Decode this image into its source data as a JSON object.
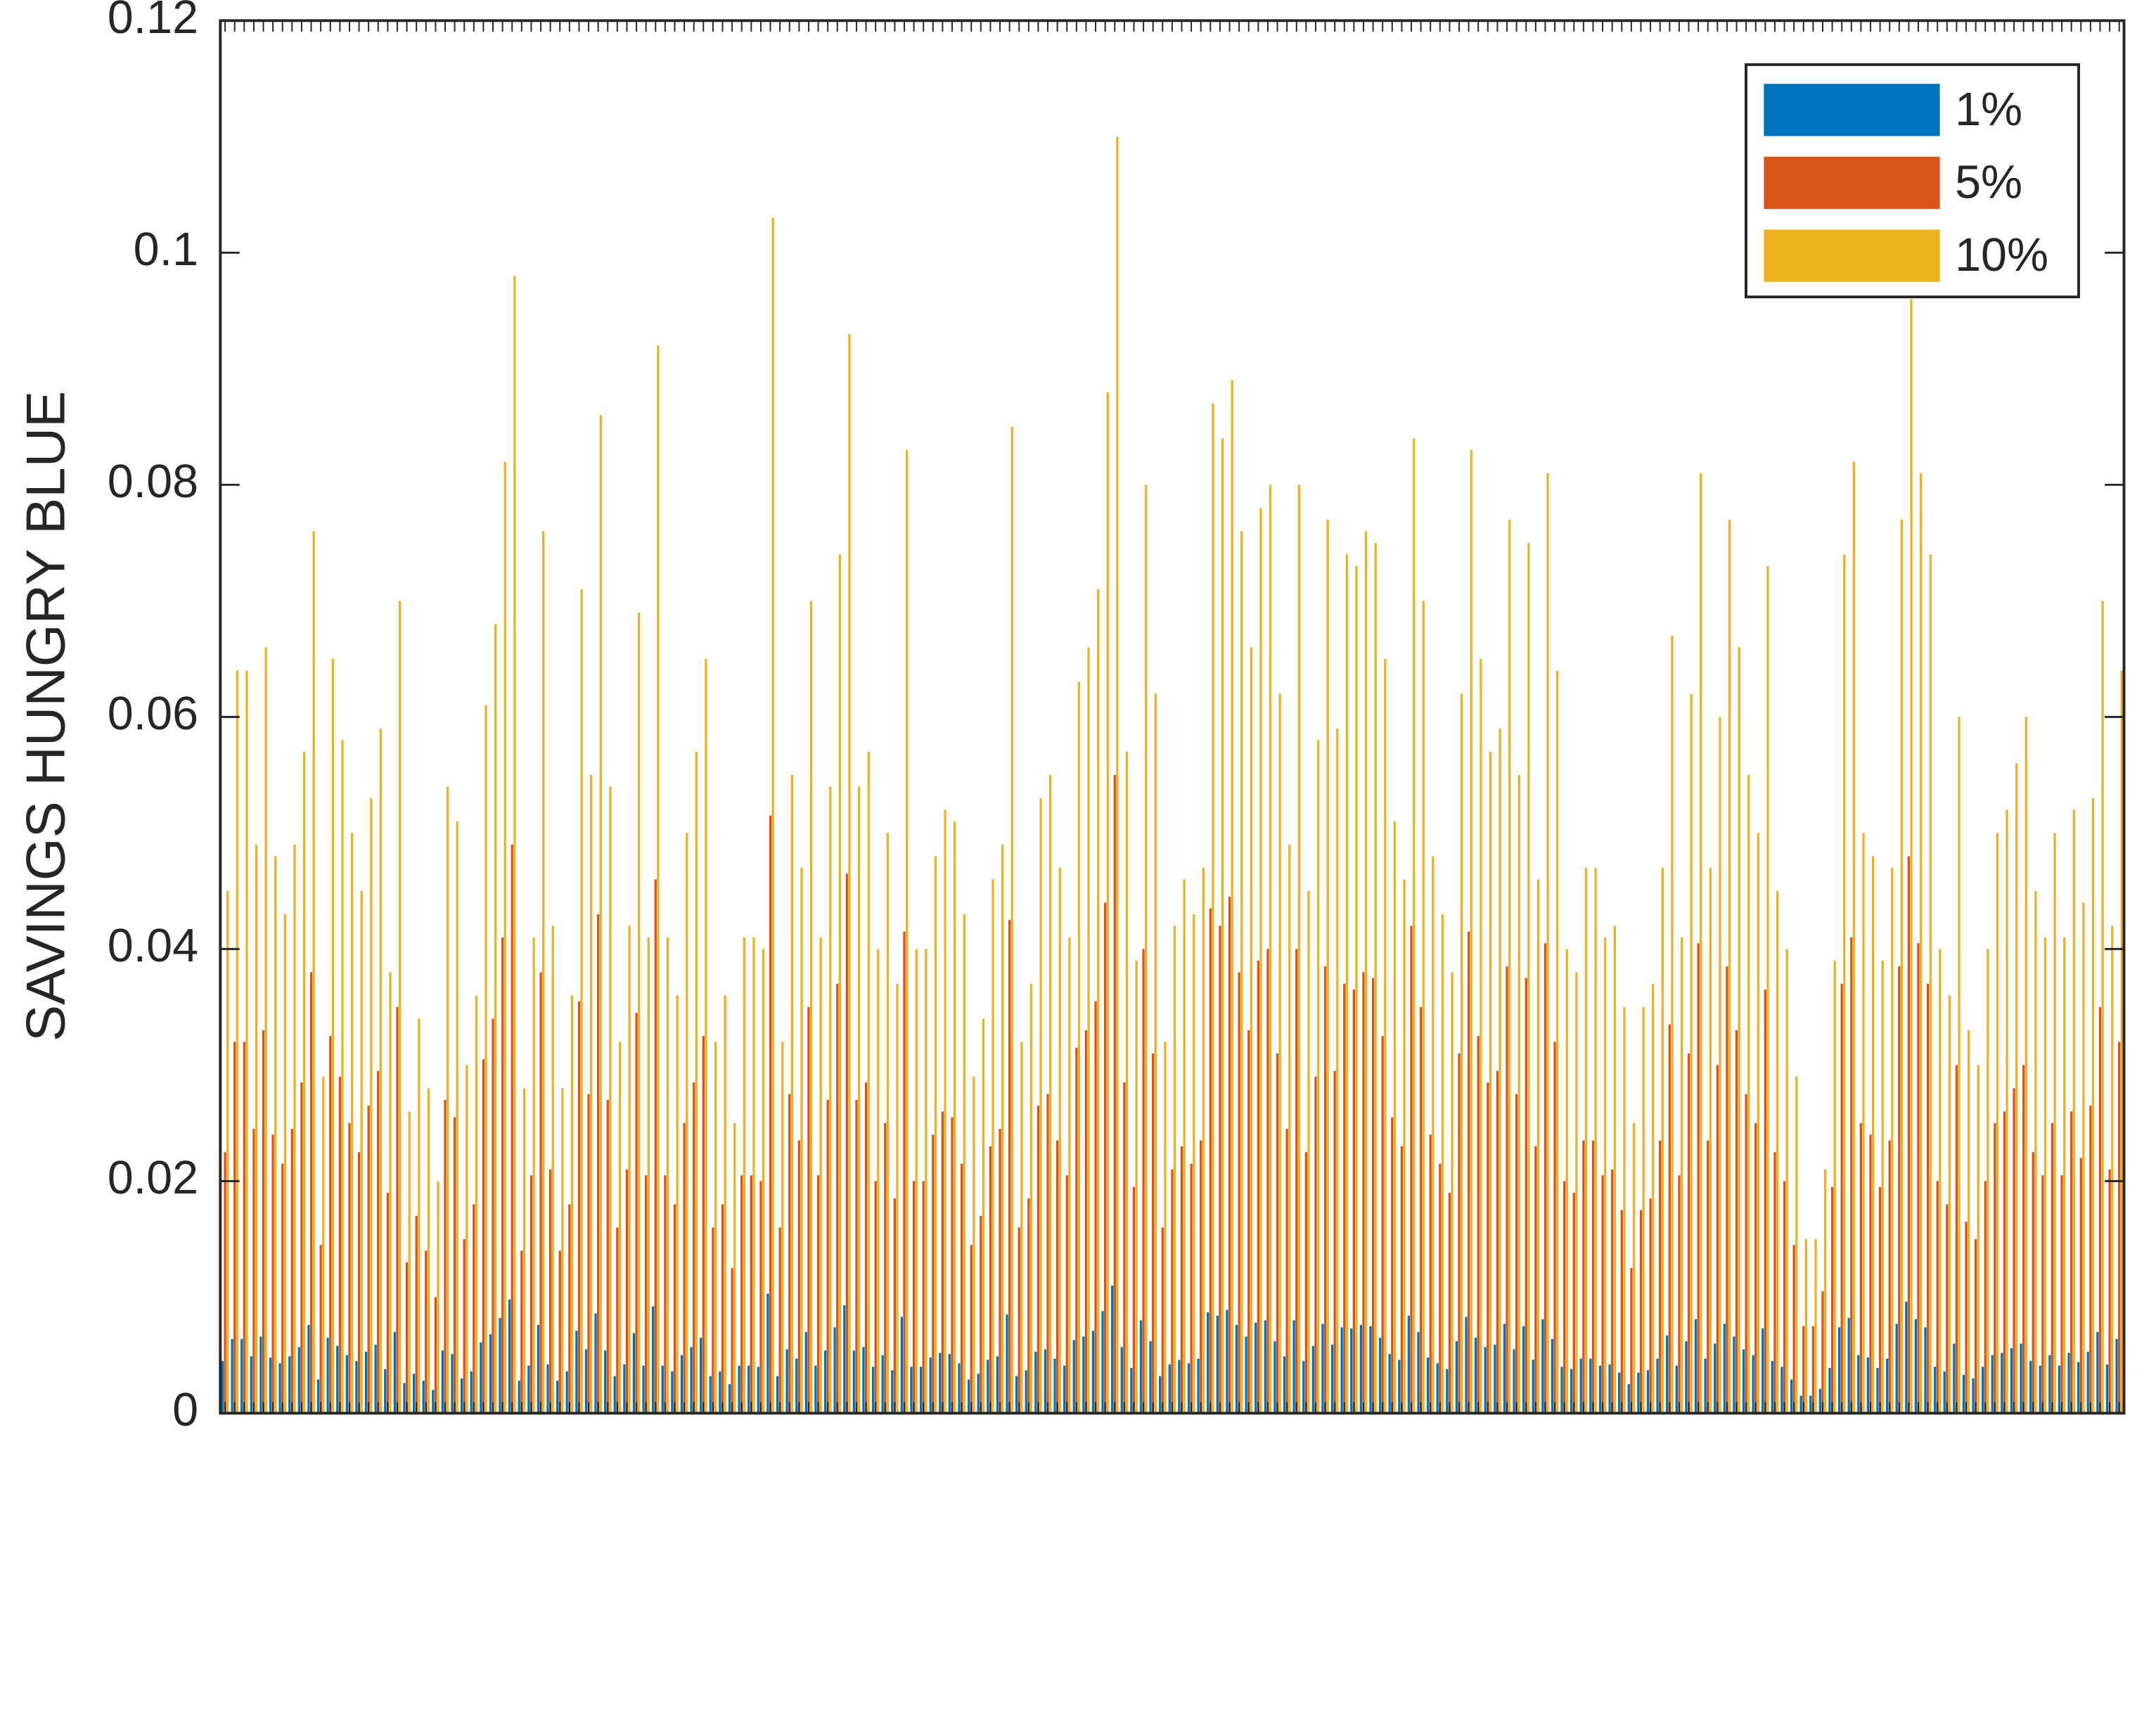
{
  "chart_data": {
    "type": "bar",
    "ylabel": "SAVINGS HUNGRY BLUE",
    "ylim": [
      0,
      0.12
    ],
    "yticks": [
      0,
      0.02,
      0.04,
      0.06,
      0.08,
      0.1,
      0.12
    ],
    "grid": false,
    "legend": "upper right",
    "series": [
      {
        "name": "1%",
        "color": "#0072bd",
        "values": [
          0.0045,
          0.0064,
          0.0064,
          0.0049,
          0.0066,
          0.0048,
          0.0043,
          0.0049,
          0.0057,
          0.0076,
          0.0029,
          0.0065,
          0.0058,
          0.005,
          0.0045,
          0.0053,
          0.0059,
          0.0038,
          0.007,
          0.0026,
          0.0034,
          0.0028,
          0.002,
          0.0054,
          0.0051,
          0.003,
          0.0036,
          0.0061,
          0.0068,
          0.0082,
          0.0098,
          0.0028,
          0.0041,
          0.0076,
          0.0042,
          0.0028,
          0.0036,
          0.0071,
          0.0055,
          0.0086,
          0.0054,
          0.0032,
          0.0042,
          0.0069,
          0.0041,
          0.0092,
          0.0041,
          0.0036,
          0.005,
          0.0057,
          0.0065,
          0.0032,
          0.0036,
          0.0025,
          0.0041,
          0.0041,
          0.004,
          0.0103,
          0.0032,
          0.0055,
          0.0047,
          0.007,
          0.0041,
          0.0054,
          0.0074,
          0.0093,
          0.0054,
          0.0057,
          0.004,
          0.005,
          0.0037,
          0.0083,
          0.004,
          0.004,
          0.0048,
          0.0052,
          0.0051,
          0.0043,
          0.0029,
          0.0034,
          0.0046,
          0.0049,
          0.0085,
          0.0032,
          0.0037,
          0.0053,
          0.0055,
          0.0047,
          0.0041,
          0.0063,
          0.0066,
          0.0071,
          0.0088,
          0.011,
          0.0057,
          0.0039,
          0.008,
          0.0062,
          0.0032,
          0.0042,
          0.0046,
          0.0043,
          0.0047,
          0.0087,
          0.0084,
          0.0089,
          0.0076,
          0.0066,
          0.0078,
          0.008,
          0.0062,
          0.0049,
          0.008,
          0.0045,
          0.0058,
          0.0077,
          0.0059,
          0.0074,
          0.0073,
          0.0076,
          0.0075,
          0.0065,
          0.0051,
          0.0046,
          0.0084,
          0.007,
          0.0048,
          0.0043,
          0.0038,
          0.0062,
          0.0083,
          0.0065,
          0.0057,
          0.0059,
          0.0077,
          0.0055,
          0.0075,
          0.0046,
          0.0081,
          0.0064,
          0.004,
          0.0038,
          0.0047,
          0.0047,
          0.0041,
          0.0042,
          0.0035,
          0.0025,
          0.0035,
          0.0037,
          0.0047,
          0.0067,
          0.0041,
          0.0062,
          0.0081,
          0.0047,
          0.006,
          0.0077,
          0.0066,
          0.0055,
          0.005,
          0.0073,
          0.0045,
          0.004,
          0.0029,
          0.0015,
          0.0015,
          0.0021,
          0.0039,
          0.0074,
          0.0082,
          0.005,
          0.0048,
          0.0039,
          0.0047,
          0.0077,
          0.0096,
          0.0081,
          0.0074,
          0.004,
          0.0036,
          0.006,
          0.0033,
          0.003,
          0.004,
          0.005,
          0.0052,
          0.0056,
          0.006,
          0.0045,
          0.0041,
          0.005,
          0.0041,
          0.0052,
          0.0044,
          0.0053,
          0.007,
          0.0042,
          0.0064
        ]
      },
      {
        "name": "5%",
        "color": "#d95319",
        "values": [
          0.0225,
          0.032,
          0.032,
          0.0245,
          0.033,
          0.024,
          0.0215,
          0.0245,
          0.0285,
          0.038,
          0.0145,
          0.0325,
          0.029,
          0.025,
          0.0225,
          0.0265,
          0.0295,
          0.019,
          0.035,
          0.013,
          0.017,
          0.014,
          0.01,
          0.027,
          0.0255,
          0.015,
          0.018,
          0.0305,
          0.034,
          0.041,
          0.049,
          0.014,
          0.0205,
          0.038,
          0.021,
          0.014,
          0.018,
          0.0355,
          0.0275,
          0.043,
          0.027,
          0.016,
          0.021,
          0.0345,
          0.0205,
          0.046,
          0.0205,
          0.018,
          0.025,
          0.0285,
          0.0325,
          0.016,
          0.018,
          0.0125,
          0.0205,
          0.0205,
          0.02,
          0.0515,
          0.016,
          0.0275,
          0.0235,
          0.035,
          0.0205,
          0.027,
          0.037,
          0.0465,
          0.027,
          0.0285,
          0.02,
          0.025,
          0.0185,
          0.0415,
          0.02,
          0.02,
          0.024,
          0.026,
          0.0255,
          0.0215,
          0.0145,
          0.017,
          0.023,
          0.0245,
          0.0425,
          0.016,
          0.0185,
          0.0265,
          0.0275,
          0.0235,
          0.0205,
          0.0315,
          0.033,
          0.0355,
          0.044,
          0.055,
          0.0285,
          0.0195,
          0.04,
          0.031,
          0.016,
          0.021,
          0.023,
          0.0215,
          0.0235,
          0.0435,
          0.042,
          0.0445,
          0.038,
          0.033,
          0.039,
          0.04,
          0.031,
          0.0245,
          0.04,
          0.0225,
          0.029,
          0.0385,
          0.0295,
          0.037,
          0.0365,
          0.038,
          0.0375,
          0.0325,
          0.0255,
          0.023,
          0.042,
          0.035,
          0.024,
          0.0215,
          0.019,
          0.031,
          0.0415,
          0.0325,
          0.0285,
          0.0295,
          0.0385,
          0.0275,
          0.0375,
          0.023,
          0.0405,
          0.032,
          0.02,
          0.019,
          0.0235,
          0.0235,
          0.0205,
          0.021,
          0.0175,
          0.0125,
          0.0175,
          0.0185,
          0.0235,
          0.0335,
          0.0205,
          0.031,
          0.0405,
          0.0235,
          0.03,
          0.0385,
          0.033,
          0.0275,
          0.025,
          0.0365,
          0.0225,
          0.02,
          0.0145,
          0.0075,
          0.0075,
          0.0105,
          0.0195,
          0.037,
          0.041,
          0.025,
          0.024,
          0.0195,
          0.0235,
          0.0385,
          0.048,
          0.0405,
          0.037,
          0.02,
          0.018,
          0.03,
          0.0165,
          0.015,
          0.02,
          0.025,
          0.026,
          0.028,
          0.03,
          0.0225,
          0.0205,
          0.025,
          0.0205,
          0.026,
          0.022,
          0.0265,
          0.035,
          0.021,
          0.032
        ]
      },
      {
        "name": "10%",
        "color": "#edb120",
        "values": [
          0.045,
          0.064,
          0.064,
          0.049,
          0.066,
          0.048,
          0.043,
          0.049,
          0.057,
          0.076,
          0.029,
          0.065,
          0.058,
          0.05,
          0.045,
          0.053,
          0.059,
          0.038,
          0.07,
          0.026,
          0.034,
          0.028,
          0.02,
          0.054,
          0.051,
          0.03,
          0.036,
          0.061,
          0.068,
          0.082,
          0.098,
          0.028,
          0.041,
          0.076,
          0.042,
          0.028,
          0.036,
          0.071,
          0.055,
          0.086,
          0.054,
          0.032,
          0.042,
          0.069,
          0.041,
          0.092,
          0.041,
          0.036,
          0.05,
          0.057,
          0.065,
          0.032,
          0.036,
          0.025,
          0.041,
          0.041,
          0.04,
          0.103,
          0.032,
          0.055,
          0.047,
          0.07,
          0.041,
          0.054,
          0.074,
          0.093,
          0.054,
          0.057,
          0.04,
          0.05,
          0.037,
          0.083,
          0.04,
          0.04,
          0.048,
          0.052,
          0.051,
          0.043,
          0.029,
          0.034,
          0.046,
          0.049,
          0.085,
          0.032,
          0.037,
          0.053,
          0.055,
          0.047,
          0.041,
          0.063,
          0.066,
          0.071,
          0.088,
          0.11,
          0.057,
          0.039,
          0.08,
          0.062,
          0.032,
          0.042,
          0.046,
          0.043,
          0.047,
          0.087,
          0.084,
          0.089,
          0.076,
          0.066,
          0.078,
          0.08,
          0.062,
          0.049,
          0.08,
          0.045,
          0.058,
          0.077,
          0.059,
          0.074,
          0.073,
          0.076,
          0.075,
          0.065,
          0.051,
          0.046,
          0.084,
          0.07,
          0.048,
          0.043,
          0.038,
          0.062,
          0.083,
          0.065,
          0.057,
          0.059,
          0.077,
          0.055,
          0.075,
          0.046,
          0.081,
          0.064,
          0.04,
          0.038,
          0.047,
          0.047,
          0.041,
          0.042,
          0.035,
          0.025,
          0.035,
          0.037,
          0.047,
          0.067,
          0.041,
          0.062,
          0.081,
          0.047,
          0.06,
          0.077,
          0.066,
          0.055,
          0.05,
          0.073,
          0.045,
          0.04,
          0.029,
          0.015,
          0.015,
          0.021,
          0.039,
          0.074,
          0.082,
          0.05,
          0.048,
          0.039,
          0.047,
          0.077,
          0.096,
          0.081,
          0.074,
          0.04,
          0.036,
          0.06,
          0.033,
          0.03,
          0.04,
          0.05,
          0.052,
          0.056,
          0.06,
          0.045,
          0.041,
          0.05,
          0.041,
          0.052,
          0.044,
          0.053,
          0.07,
          0.042,
          0.064
        ]
      }
    ]
  }
}
